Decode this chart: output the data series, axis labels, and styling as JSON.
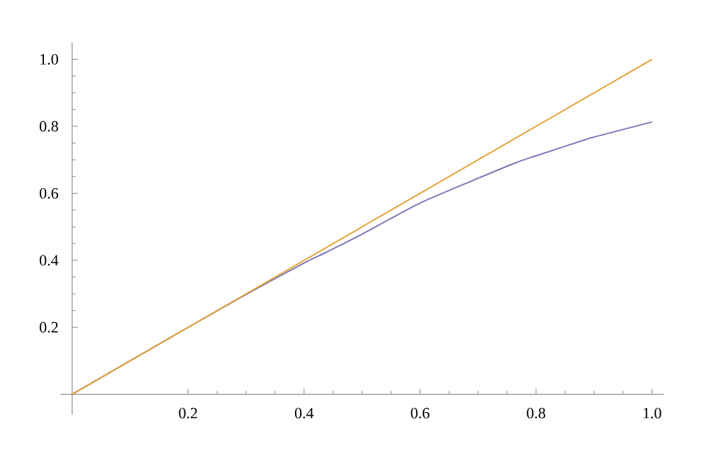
{
  "chart_data": {
    "type": "line",
    "series": [
      {
        "color": "#7a7ab8",
        "x": [
          0,
          0.1,
          0.2,
          0.3,
          0.4,
          0.437,
          0.5,
          0.6,
          0.7,
          0.763,
          0.8,
          0.886,
          0.9,
          1.0
        ],
        "values": [
          0,
          0.1,
          0.2,
          0.298,
          0.392,
          0.423,
          0.478,
          0.571,
          0.645,
          0.69,
          0.712,
          0.761,
          0.768,
          0.813
        ]
      },
      {
        "color": "#e8a23a",
        "x": [
          0,
          1.0
        ],
        "values": [
          0,
          1.0
        ]
      }
    ],
    "xlim": [
      -0.02,
      1.02
    ],
    "ylim": [
      -0.06,
      1.05
    ],
    "xticks": [
      0.2,
      0.4,
      0.6,
      0.8,
      {
        "value": 1.0,
        "label": "1.0"
      }
    ],
    "yticks": [
      0.2,
      0.4,
      0.6,
      0.8,
      {
        "value": 1.0,
        "label": "1.0"
      }
    ],
    "grid": false,
    "marker": "none",
    "line_style": "solid"
  }
}
